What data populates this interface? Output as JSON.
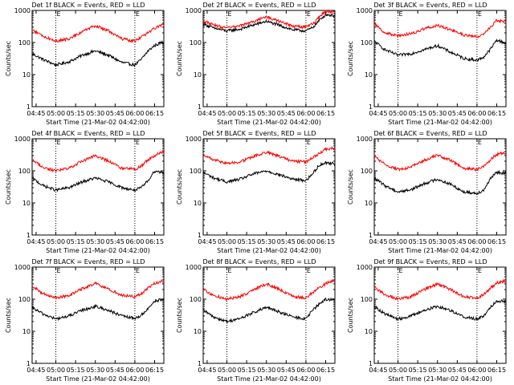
{
  "colors": {
    "events": "#000000",
    "lld": "#ff0000",
    "axis": "#000000"
  },
  "x_tick_labels": [
    "04:45",
    "05:00",
    "05:15",
    "05:30",
    "05:45",
    "06:00",
    "06:15"
  ],
  "y_tick_labels": [
    "1",
    "10",
    "100",
    "1000"
  ],
  "ylabel": "Counts/sec",
  "xlabel": "Start Time (21-Mar-02 04:42:00)",
  "marker_label": "E",
  "chart_data": [
    {
      "type": "line",
      "title": "Det 1f BLACK = Events, RED = LLD",
      "xlabel": "Start Time (21-Mar-02 04:42:00)",
      "ylabel": "Counts/sec",
      "y_scale": "log",
      "ylim": [
        1,
        1000
      ],
      "xlim": [
        "04:42",
        "06:22"
      ],
      "event_markers": [
        "05:00",
        "06:00"
      ],
      "x": [
        "04:42",
        "04:50",
        "05:00",
        "05:10",
        "05:20",
        "05:30",
        "05:40",
        "05:50",
        "06:00",
        "06:05",
        "06:10",
        "06:15",
        "06:20"
      ],
      "series": [
        {
          "name": "Events",
          "color": "#000000",
          "values": [
            45,
            30,
            20,
            25,
            40,
            55,
            40,
            24,
            20,
            30,
            55,
            80,
            100
          ]
        },
        {
          "name": "LLD",
          "color": "#ff0000",
          "values": [
            250,
            160,
            110,
            130,
            220,
            330,
            230,
            130,
            110,
            150,
            200,
            280,
            350
          ]
        }
      ]
    },
    {
      "type": "line",
      "title": "Det 2f BLACK = Events, RED = LLD",
      "xlabel": "Start Time (21-Mar-02 04:42:00)",
      "ylabel": "Counts/sec",
      "y_scale": "log",
      "ylim": [
        1,
        1000
      ],
      "xlim": [
        "04:42",
        "06:22"
      ],
      "event_markers": [
        "05:00",
        "06:00"
      ],
      "x": [
        "04:42",
        "04:50",
        "05:00",
        "05:10",
        "05:20",
        "05:30",
        "05:40",
        "05:50",
        "06:00",
        "06:05",
        "06:10",
        "06:15",
        "06:20"
      ],
      "series": [
        {
          "name": "Events",
          "color": "#000000",
          "values": [
            380,
            280,
            230,
            260,
            350,
            460,
            340,
            250,
            230,
            290,
            480,
            750,
            700
          ]
        },
        {
          "name": "LLD",
          "color": "#ff0000",
          "values": [
            480,
            350,
            280,
            330,
            450,
            620,
            450,
            320,
            300,
            380,
            620,
            950,
            880
          ]
        }
      ]
    },
    {
      "type": "line",
      "title": "Det 3f BLACK = Events, RED = LLD",
      "xlabel": "Start Time (21-Mar-02 04:42:00)",
      "ylabel": "Counts/sec",
      "y_scale": "log",
      "ylim": [
        1,
        1000
      ],
      "xlim": [
        "04:42",
        "06:22"
      ],
      "event_markers": [
        "05:00",
        "06:00"
      ],
      "x": [
        "04:42",
        "04:50",
        "05:00",
        "05:10",
        "05:20",
        "05:30",
        "05:40",
        "05:50",
        "06:00",
        "06:05",
        "06:10",
        "06:15",
        "06:20"
      ],
      "series": [
        {
          "name": "Events",
          "color": "#000000",
          "values": [
            110,
            60,
            40,
            45,
            60,
            80,
            50,
            32,
            28,
            35,
            60,
            120,
            100
          ]
        },
        {
          "name": "LLD",
          "color": "#ff0000",
          "values": [
            400,
            200,
            160,
            190,
            270,
            340,
            250,
            170,
            150,
            190,
            280,
            500,
            450
          ]
        }
      ]
    },
    {
      "type": "line",
      "title": "Det 4f BLACK = Events, RED = LLD",
      "xlabel": "Start Time (21-Mar-02 04:42:00)",
      "ylabel": "Counts/sec",
      "y_scale": "log",
      "ylim": [
        1,
        1000
      ],
      "xlim": [
        "04:42",
        "06:22"
      ],
      "event_markers": [
        "05:00",
        "06:00"
      ],
      "x": [
        "04:42",
        "04:50",
        "05:00",
        "05:10",
        "05:20",
        "05:30",
        "05:40",
        "05:50",
        "06:00",
        "06:05",
        "06:10",
        "06:15",
        "06:20"
      ],
      "series": [
        {
          "name": "Events",
          "color": "#000000",
          "values": [
            60,
            35,
            25,
            30,
            45,
            60,
            45,
            30,
            25,
            30,
            50,
            100,
            90
          ]
        },
        {
          "name": "LLD",
          "color": "#ff0000",
          "values": [
            220,
            130,
            100,
            120,
            200,
            300,
            200,
            120,
            110,
            140,
            220,
            300,
            380
          ]
        }
      ]
    },
    {
      "type": "line",
      "title": "Det 5f BLACK = Events, RED = LLD",
      "xlabel": "Start Time (21-Mar-02 04:42:00)",
      "ylabel": "Counts/sec",
      "y_scale": "log",
      "ylim": [
        1,
        1000
      ],
      "xlim": [
        "04:42",
        "06:22"
      ],
      "event_markers": [
        "06:00"
      ],
      "x": [
        "04:42",
        "04:50",
        "05:00",
        "05:10",
        "05:20",
        "05:30",
        "05:40",
        "05:50",
        "06:00",
        "06:05",
        "06:10",
        "06:15",
        "06:20"
      ],
      "series": [
        {
          "name": "Events",
          "color": "#000000",
          "values": [
            90,
            60,
            45,
            55,
            80,
            100,
            75,
            55,
            50,
            80,
            150,
            180,
            170
          ]
        },
        {
          "name": "LLD",
          "color": "#ff0000",
          "values": [
            330,
            220,
            170,
            190,
            280,
            380,
            280,
            200,
            190,
            250,
            350,
            480,
            500
          ]
        }
      ]
    },
    {
      "type": "line",
      "title": "Det 6f BLACK = Events, RED = LLD",
      "xlabel": "Start Time (21-Mar-02 04:42:00)",
      "ylabel": "Counts/sec",
      "y_scale": "log",
      "ylim": [
        1,
        1000
      ],
      "xlim": [
        "04:42",
        "06:22"
      ],
      "event_markers": [
        "06:00"
      ],
      "x": [
        "04:42",
        "04:50",
        "05:00",
        "05:10",
        "05:20",
        "05:30",
        "05:40",
        "05:50",
        "06:00",
        "06:05",
        "06:10",
        "06:15",
        "06:20"
      ],
      "series": [
        {
          "name": "Events",
          "color": "#000000",
          "values": [
            60,
            35,
            22,
            26,
            40,
            55,
            38,
            22,
            20,
            25,
            55,
            90,
            85
          ]
        },
        {
          "name": "LLD",
          "color": "#ff0000",
          "values": [
            280,
            160,
            110,
            130,
            210,
            310,
            210,
            120,
            110,
            140,
            220,
            330,
            360
          ]
        }
      ]
    },
    {
      "type": "line",
      "title": "Det 7f BLACK = Events, RED = LLD",
      "xlabel": "Start Time (21-Mar-02 04:42:00)",
      "ylabel": "Counts/sec",
      "y_scale": "log",
      "ylim": [
        1,
        1000
      ],
      "xlim": [
        "04:42",
        "06:22"
      ],
      "event_markers": [
        "05:00",
        "06:00"
      ],
      "x": [
        "04:42",
        "04:50",
        "05:00",
        "05:10",
        "05:20",
        "05:30",
        "05:40",
        "05:50",
        "06:00",
        "06:05",
        "06:10",
        "06:15",
        "06:20"
      ],
      "series": [
        {
          "name": "Events",
          "color": "#000000",
          "values": [
            55,
            35,
            24,
            30,
            45,
            60,
            45,
            30,
            25,
            32,
            50,
            90,
            95
          ]
        },
        {
          "name": "LLD",
          "color": "#ff0000",
          "values": [
            260,
            150,
            110,
            130,
            210,
            310,
            210,
            130,
            120,
            150,
            220,
            320,
            360
          ]
        }
      ]
    },
    {
      "type": "line",
      "title": "Det 8f BLACK = Events, RED = LLD",
      "xlabel": "Start Time (21-Mar-02 04:42:00)",
      "ylabel": "Counts/sec",
      "y_scale": "log",
      "ylim": [
        1,
        1000
      ],
      "xlim": [
        "04:42",
        "06:22"
      ],
      "event_markers": [
        "05:00",
        "06:00"
      ],
      "x": [
        "04:42",
        "04:50",
        "05:00",
        "05:10",
        "05:20",
        "05:30",
        "05:40",
        "05:50",
        "06:00",
        "06:05",
        "06:10",
        "06:15",
        "06:20"
      ],
      "series": [
        {
          "name": "Events",
          "color": "#000000",
          "values": [
            45,
            28,
            20,
            25,
            38,
            55,
            40,
            28,
            24,
            45,
            70,
            100,
            95
          ]
        },
        {
          "name": "LLD",
          "color": "#ff0000",
          "values": [
            200,
            130,
            100,
            120,
            190,
            300,
            200,
            120,
            110,
            160,
            230,
            300,
            380
          ]
        }
      ]
    },
    {
      "type": "line",
      "title": "Det 9f BLACK = Events, RED = LLD",
      "xlabel": "Start Time (21-Mar-02 04:42:00)",
      "ylabel": "Counts/sec",
      "y_scale": "log",
      "ylim": [
        1,
        1000
      ],
      "xlim": [
        "04:42",
        "06:22"
      ],
      "event_markers": [
        "05:00",
        "06:00"
      ],
      "x": [
        "04:42",
        "04:50",
        "05:00",
        "05:10",
        "05:20",
        "05:30",
        "05:40",
        "05:50",
        "06:00",
        "06:05",
        "06:10",
        "06:15",
        "06:20"
      ],
      "series": [
        {
          "name": "Events",
          "color": "#000000",
          "values": [
            60,
            35,
            24,
            30,
            45,
            60,
            45,
            28,
            24,
            30,
            55,
            90,
            85
          ]
        },
        {
          "name": "LLD",
          "color": "#ff0000",
          "values": [
            240,
            140,
            100,
            120,
            200,
            300,
            200,
            120,
            110,
            140,
            220,
            320,
            360
          ]
        }
      ]
    }
  ]
}
